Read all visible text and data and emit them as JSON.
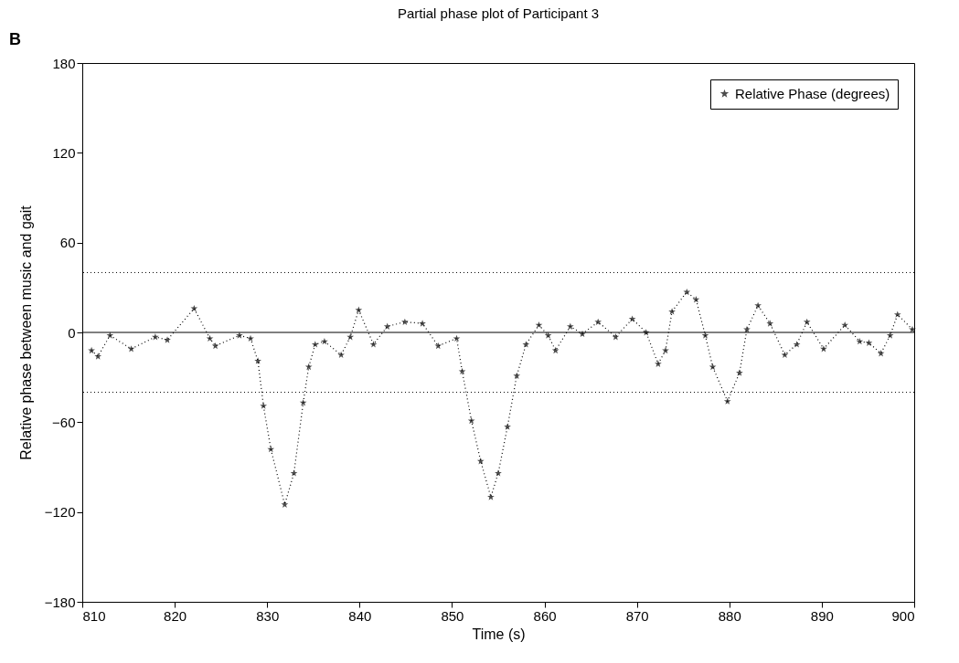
{
  "chart_data": {
    "type": "line",
    "title": "Partial phase plot of Participant 3",
    "xlabel": "Time (s)",
    "ylabel": "Relative phase between music and gait",
    "annotations": [
      "B"
    ],
    "series": [
      {
        "name": "Relative Phase (degrees)",
        "color": "#000000",
        "marker": "star",
        "line_style": "dotted",
        "x": [
          811.0,
          811.7,
          813.0,
          815.3,
          817.9,
          819.2,
          822.1,
          823.8,
          824.4,
          827.0,
          828.2,
          829.0,
          829.6,
          830.4,
          831.9,
          832.9,
          833.9,
          834.5,
          835.2,
          836.2,
          838.0,
          839.0,
          839.9,
          841.5,
          843.0,
          844.9,
          846.8,
          848.5,
          850.5,
          851.1,
          852.1,
          853.1,
          854.2,
          855.0,
          856.0,
          857.0,
          858.0,
          859.4,
          860.4,
          861.2,
          862.8,
          864.1,
          865.8,
          867.7,
          869.5,
          871.0,
          872.3,
          873.1,
          873.8,
          875.4,
          876.4,
          877.4,
          878.2,
          879.8,
          881.1,
          881.9,
          883.1,
          884.4,
          886.0,
          887.3,
          888.4,
          890.2,
          892.5,
          894.1,
          895.1,
          896.4,
          897.4,
          898.2,
          899.8
        ],
        "values": [
          -12,
          -16,
          -2,
          -11,
          -3,
          -5,
          16,
          -4,
          -9,
          -2,
          -4,
          -19,
          -49,
          -78,
          -115,
          -94,
          -47,
          -23,
          -8,
          -6,
          -15,
          -3,
          15,
          -8,
          4,
          7,
          6,
          -9,
          -4,
          -26,
          -59,
          -86,
          -110,
          -94,
          -63,
          -29,
          -8,
          5,
          -2,
          -12,
          4,
          -1,
          7,
          -3,
          9,
          0,
          -21,
          -12,
          14,
          27,
          22,
          -2,
          -23,
          -46,
          -27,
          2,
          18,
          6,
          -15,
          -8,
          7,
          -11,
          5,
          -6,
          -7,
          -14,
          -2,
          12,
          2
        ]
      }
    ],
    "xlim": [
      810,
      900
    ],
    "xticks": [
      810,
      820,
      830,
      840,
      850,
      860,
      870,
      880,
      890,
      900
    ],
    "ylim": [
      -180,
      180
    ],
    "yticks": [
      -180,
      -120,
      -60,
      0,
      60,
      120,
      180
    ],
    "ref_lines": [
      {
        "axis": "y",
        "value": 0,
        "color": "#000000",
        "line_style": "solid"
      },
      {
        "axis": "y",
        "value": 40,
        "color": "#000000",
        "line_style": "dotted"
      },
      {
        "axis": "y",
        "value": -40,
        "color": "#000000",
        "line_style": "dotted"
      }
    ],
    "grid": false,
    "legend": "top right"
  }
}
